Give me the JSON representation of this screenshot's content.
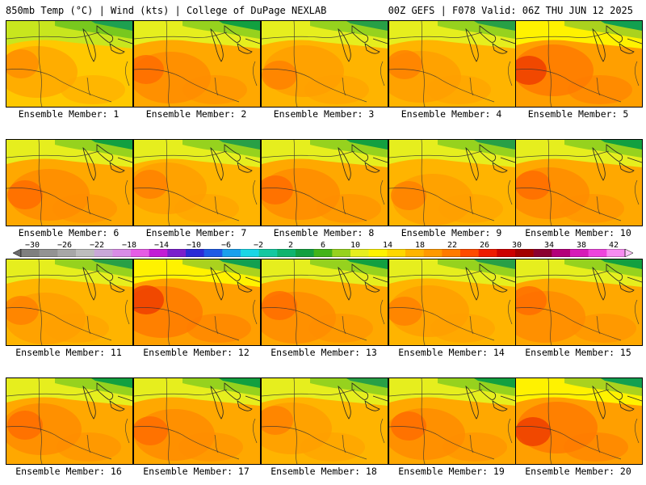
{
  "header": {
    "left": "850mb Temp (°C) | Wind (kts) | College of DuPage NEXLAB",
    "right": "00Z GEFS | F078 Valid: 06Z THU JUN 12 2025"
  },
  "colorbar": {
    "tick_labels": [
      "−30",
      "−26",
      "−22",
      "−18",
      "−14",
      "−10",
      "−6",
      "−2",
      "2",
      "6",
      "10",
      "14",
      "18",
      "22",
      "26",
      "30",
      "34",
      "38",
      "42"
    ],
    "colors": [
      "#6b6b6b",
      "#7f7f7f",
      "#939393",
      "#a7a7a7",
      "#bdbdbd",
      "#c9a8d8",
      "#d98ce6",
      "#e65ce6",
      "#c21cd6",
      "#7a1fcc",
      "#2a2ad6",
      "#1e5ae6",
      "#1aa0ec",
      "#19d6e6",
      "#14c8a0",
      "#0fb46e",
      "#12a040",
      "#42b419",
      "#96d21e",
      "#e6ee1e",
      "#fff200",
      "#ffd700",
      "#ffb400",
      "#ff9900",
      "#ff7a00",
      "#ff4a00",
      "#ee1a00",
      "#cc0000",
      "#a30000",
      "#8b0030",
      "#b3007a",
      "#d61ab8",
      "#ee44dd",
      "#f78cf0",
      "#fcc6f7"
    ]
  },
  "panels": [
    {
      "label": "Ensemble Member: 1",
      "variant": 1
    },
    {
      "label": "Ensemble Member: 2",
      "variant": 3
    },
    {
      "label": "Ensemble Member: 3",
      "variant": 2
    },
    {
      "label": "Ensemble Member: 4",
      "variant": 2
    },
    {
      "label": "Ensemble Member: 5",
      "variant": 4
    },
    {
      "label": "Ensemble Member: 6",
      "variant": 3
    },
    {
      "label": "Ensemble Member: 7",
      "variant": 2
    },
    {
      "label": "Ensemble Member: 8",
      "variant": 3
    },
    {
      "label": "Ensemble Member: 9",
      "variant": 2
    },
    {
      "label": "Ensemble Member: 10",
      "variant": 3
    },
    {
      "label": "Ensemble Member: 11",
      "variant": 2
    },
    {
      "label": "Ensemble Member: 12",
      "variant": 4
    },
    {
      "label": "Ensemble Member: 13",
      "variant": 3
    },
    {
      "label": "Ensemble Member: 14",
      "variant": 2
    },
    {
      "label": "Ensemble Member: 15",
      "variant": 3
    },
    {
      "label": "Ensemble Member: 16",
      "variant": 3
    },
    {
      "label": "Ensemble Member: 17",
      "variant": 3
    },
    {
      "label": "Ensemble Member: 18",
      "variant": 2
    },
    {
      "label": "Ensemble Member: 19",
      "variant": 3
    },
    {
      "label": "Ensemble Member: 20",
      "variant": 4
    }
  ]
}
